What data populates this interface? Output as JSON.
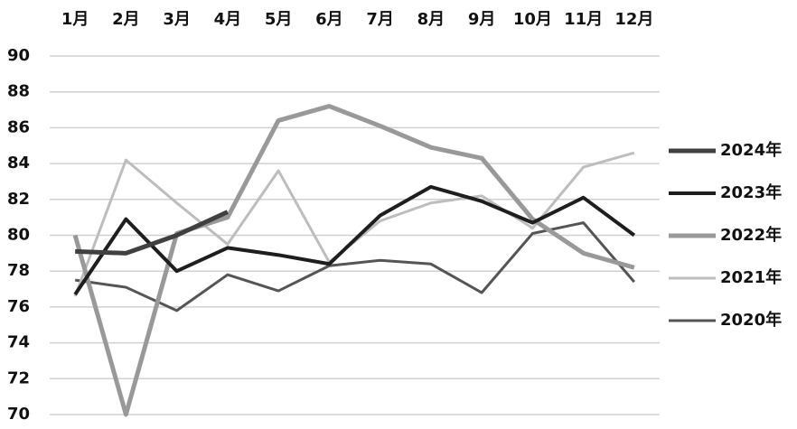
{
  "chart_data": {
    "type": "line",
    "categories": [
      "1月",
      "2月",
      "3月",
      "4月",
      "5月",
      "6月",
      "7月",
      "8月",
      "9月",
      "10月",
      "11月",
      "12月"
    ],
    "series": [
      {
        "name": "2024年",
        "color": "#404040",
        "values": [
          79.1,
          79.0,
          80.0,
          81.3,
          null,
          null,
          null,
          null,
          null,
          null,
          null,
          null
        ]
      },
      {
        "name": "2023年",
        "color": "#1e1e1e",
        "values": [
          76.7,
          80.9,
          78.0,
          79.3,
          78.9,
          78.4,
          81.1,
          82.7,
          81.9,
          80.7,
          82.1,
          80.0
        ]
      },
      {
        "name": "2022年",
        "color": "#999999",
        "values": [
          80.0,
          70.0,
          80.1,
          81.0,
          86.4,
          87.2,
          86.1,
          84.9,
          84.3,
          80.9,
          79.0,
          78.2
        ]
      },
      {
        "name": "2021年",
        "color": "#bdbdbd",
        "values": [
          76.6,
          84.2,
          81.8,
          79.5,
          83.6,
          78.5,
          80.8,
          81.8,
          82.2,
          80.4,
          83.8,
          84.6
        ]
      },
      {
        "name": "2020年",
        "color": "#555555",
        "values": [
          77.5,
          77.1,
          75.8,
          77.8,
          76.9,
          78.3,
          78.6,
          78.4,
          76.8,
          80.1,
          80.7,
          77.4
        ]
      }
    ],
    "ylim": [
      70,
      90
    ],
    "yticks": [
      70,
      72,
      74,
      76,
      78,
      80,
      82,
      84,
      86,
      88,
      90
    ],
    "grid": true,
    "legend": "right"
  }
}
